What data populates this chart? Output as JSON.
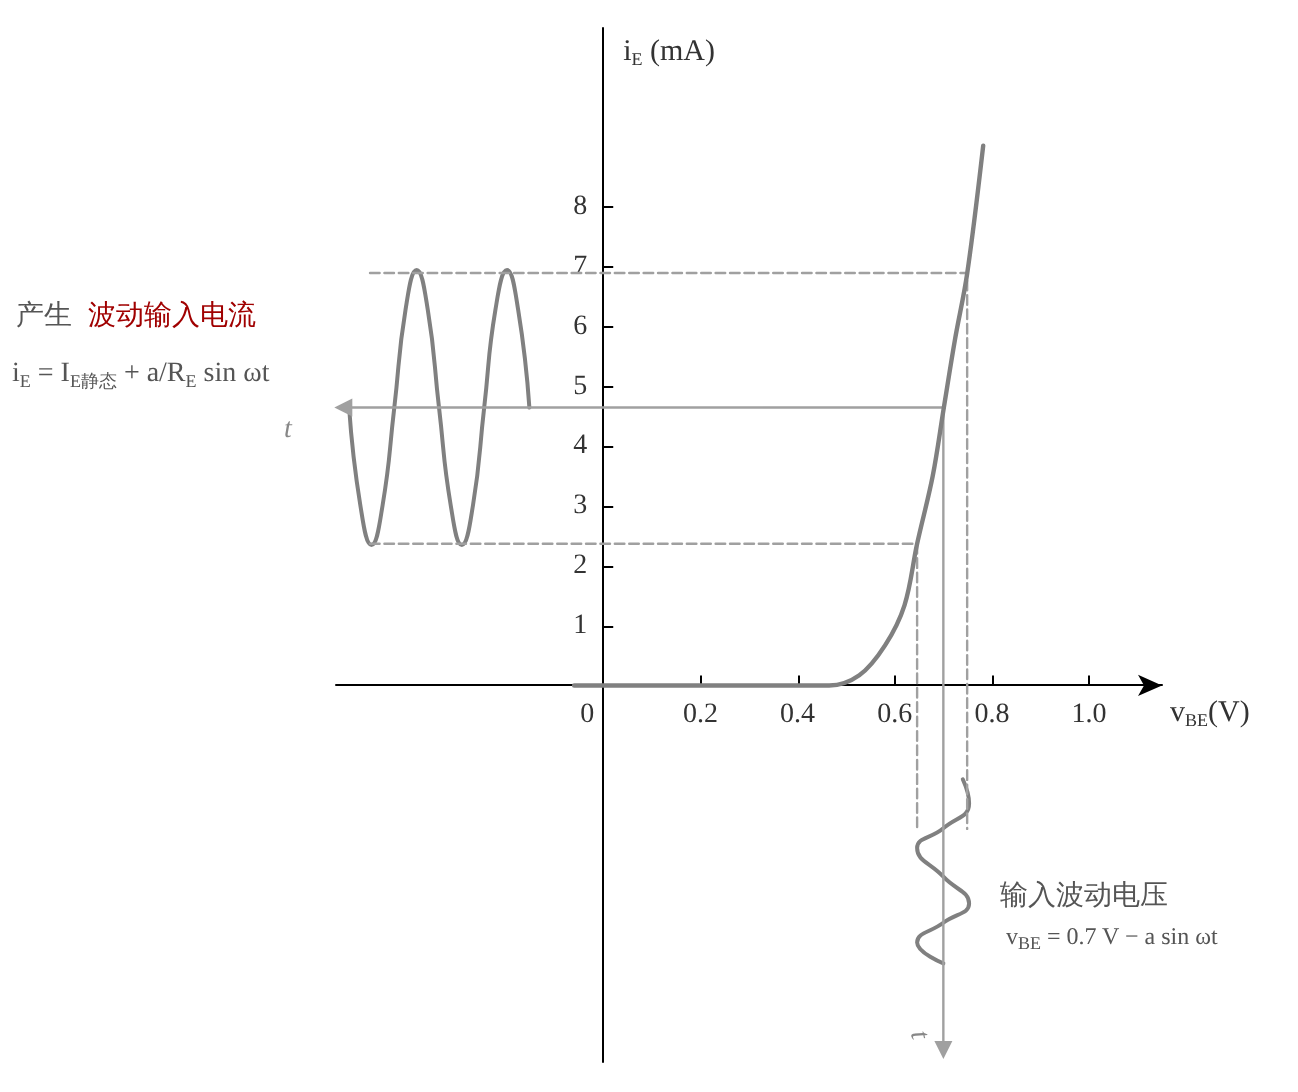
{
  "chart_data": {
    "type": "line",
    "xlabel": "v$_{BE}$(V)",
    "ylabel": "i$_{E}$ (mA)",
    "xlim": [
      -0.55,
      1.15
    ],
    "ylim": [
      -6.3,
      11
    ],
    "xticks": [
      0,
      0.2,
      0.4,
      {
        "value": 0.6,
        "label": "0.6"
      },
      0.8,
      {
        "value": 1.0,
        "label": "1.0"
      }
    ],
    "yticks": [
      1,
      2,
      3,
      4,
      5,
      6,
      7,
      8
    ],
    "grid": false,
    "annotations": [
      "产生",
      "波动输入电流",
      "i$_{E}$ = I$_{E静态}$ + a/R$_{E}$ sin ωt",
      "t",
      "输入波动电压",
      "v$_{BE}$ = 0.7 V − a sin ωt",
      "t"
    ],
    "series": [
      {
        "color": "#808080",
        "x": [
          -0.06,
          0.2,
          0.465,
          0.527,
          0.58,
          0.62,
          0.646,
          0.678,
          0.701,
          0.724,
          0.749,
          0.782
        ],
        "values": [
          0,
          0,
          0,
          0.17,
          0.67,
          1.34,
          2.37,
          3.5,
          4.65,
          5.79,
          6.89,
          9.03
        ]
      },
      {
        "color": "#808080",
        "x": [
          -0.152,
          -0.175,
          -0.198,
          -0.222,
          -0.245,
          -0.268,
          -0.291,
          -0.314,
          -0.338,
          -0.361,
          -0.384,
          -0.407,
          -0.43,
          -0.454,
          -0.477,
          -0.5,
          -0.523
        ],
        "values": [
          4.65,
          6.28,
          6.95,
          6.28,
          4.65,
          3.02,
          2.35,
          3.02,
          4.65,
          6.28,
          6.95,
          6.28,
          4.65,
          3.02,
          2.35,
          3.02,
          4.65
        ]
      },
      {
        "color": "#808080",
        "x": [
          0.74,
          0.753,
          0.7,
          0.646,
          0.7,
          0.753,
          0.7,
          0.646,
          0.7
        ],
        "values": [
          -1.57,
          -1.97,
          -2.39,
          -2.72,
          -3.2,
          -3.65,
          -3.97,
          -4.3,
          -4.65
        ]
      },
      {
        "color": "#a0a0a0",
        "x": [
          0.7,
          -0.535
        ],
        "values": [
          4.65,
          4.65
        ],
        "marker": "triangle"
      },
      {
        "color": "#a0a0a0",
        "x": [
          0.7,
          0.7
        ],
        "values": [
          4.65,
          -6.1
        ],
        "marker": "triangle"
      },
      {
        "color": "#a0a0a0",
        "x": [
          -0.48,
          0.749,
          0.749
        ],
        "values": [
          6.9,
          6.9,
          -2.4
        ],
        "line_style": "dashed"
      },
      {
        "color": "#a0a0a0",
        "x": [
          -0.48,
          0.646,
          0.646
        ],
        "values": [
          2.37,
          2.37,
          -2.4
        ],
        "line_style": "dashed"
      }
    ]
  }
}
